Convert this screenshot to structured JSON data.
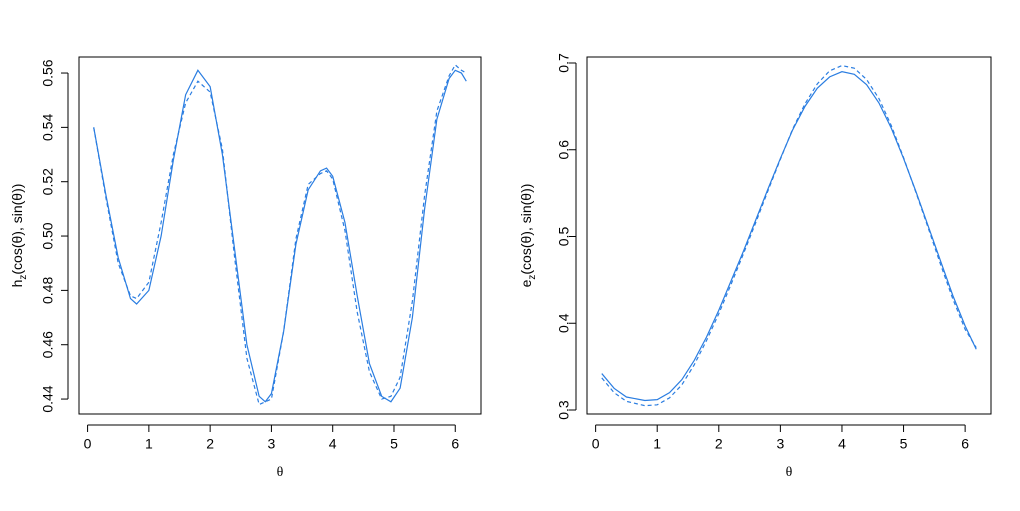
{
  "chart_data": [
    {
      "type": "line",
      "xlabel": "θ",
      "ylabel": [
        "h",
        "z",
        "(cos(θ), sin(θ))"
      ],
      "x": [
        0.1,
        0.3,
        0.5,
        0.7,
        0.8,
        1.0,
        1.2,
        1.4,
        1.6,
        1.8,
        2.0,
        2.2,
        2.4,
        2.6,
        2.8,
        2.9,
        3.0,
        3.2,
        3.4,
        3.6,
        3.8,
        3.9,
        4.0,
        4.2,
        4.4,
        4.6,
        4.8,
        4.95,
        5.1,
        5.3,
        5.5,
        5.7,
        5.9,
        6.0,
        6.1,
        6.18
      ],
      "series": [
        {
          "color": "#2a7de1",
          "linestyle": "solid",
          "values": [
            0.54,
            0.515,
            0.492,
            0.477,
            0.475,
            0.48,
            0.5,
            0.528,
            0.552,
            0.561,
            0.555,
            0.53,
            0.495,
            0.46,
            0.441,
            0.439,
            0.442,
            0.465,
            0.497,
            0.517,
            0.524,
            0.525,
            0.522,
            0.505,
            0.478,
            0.453,
            0.441,
            0.439,
            0.444,
            0.47,
            0.51,
            0.543,
            0.558,
            0.561,
            0.56,
            0.557
          ]
        },
        {
          "color": "#2a7de1",
          "linestyle": "dashed",
          "values": [
            0.54,
            0.514,
            0.49,
            0.478,
            0.477,
            0.483,
            0.505,
            0.53,
            0.549,
            0.557,
            0.553,
            0.532,
            0.492,
            0.455,
            0.438,
            0.439,
            0.44,
            0.465,
            0.499,
            0.519,
            0.523,
            0.524,
            0.521,
            0.502,
            0.472,
            0.45,
            0.44,
            0.441,
            0.448,
            0.476,
            0.515,
            0.546,
            0.559,
            0.563,
            0.561,
            0.56
          ]
        }
      ],
      "xlim": [
        -0.14,
        6.42
      ],
      "xticks": [
        0,
        1,
        2,
        3,
        4,
        5,
        6
      ],
      "ylim": [
        0.4345,
        0.5659
      ],
      "yticks": [
        0.44,
        0.46,
        0.48,
        {
          "value": 0.5,
          "label": "0.50"
        },
        0.52,
        0.54,
        0.56
      ]
    },
    {
      "type": "line",
      "xlabel": "θ",
      "ylabel": [
        "e",
        "z",
        "(cos(θ), sin(θ))"
      ],
      "x": [
        0.1,
        0.3,
        0.5,
        0.8,
        1.0,
        1.2,
        1.4,
        1.6,
        1.8,
        2.0,
        2.2,
        2.4,
        2.6,
        2.8,
        3.0,
        3.2,
        3.4,
        3.6,
        3.8,
        4.0,
        4.2,
        4.4,
        4.6,
        4.8,
        5.0,
        5.2,
        5.4,
        5.6,
        5.8,
        6.0,
        6.18
      ],
      "series": [
        {
          "color": "#2a7de1",
          "linestyle": "solid",
          "values": [
            0.342,
            0.325,
            0.315,
            0.311,
            0.312,
            0.32,
            0.335,
            0.357,
            0.384,
            0.415,
            0.449,
            0.483,
            0.519,
            0.555,
            0.59,
            0.623,
            0.65,
            0.671,
            0.684,
            0.69,
            0.687,
            0.675,
            0.654,
            0.625,
            0.59,
            0.552,
            0.512,
            0.472,
            0.432,
            0.397,
            0.37
          ]
        },
        {
          "color": "#2a7de1",
          "linestyle": "dashed",
          "values": [
            0.337,
            0.32,
            0.31,
            0.305,
            0.306,
            0.314,
            0.329,
            0.352,
            0.38,
            0.411,
            0.445,
            0.48,
            0.516,
            0.553,
            0.589,
            0.624,
            0.653,
            0.676,
            0.691,
            0.697,
            0.694,
            0.681,
            0.659,
            0.628,
            0.591,
            0.551,
            0.51,
            0.468,
            0.428,
            0.393,
            0.372
          ]
        }
      ],
      "xlim": [
        -0.14,
        6.42
      ],
      "xticks": [
        0,
        1,
        2,
        3,
        4,
        5,
        6
      ],
      "ylim": [
        0.2954,
        0.7069
      ],
      "yticks": [
        0.3,
        0.4,
        0.5,
        0.6,
        0.7
      ]
    }
  ]
}
